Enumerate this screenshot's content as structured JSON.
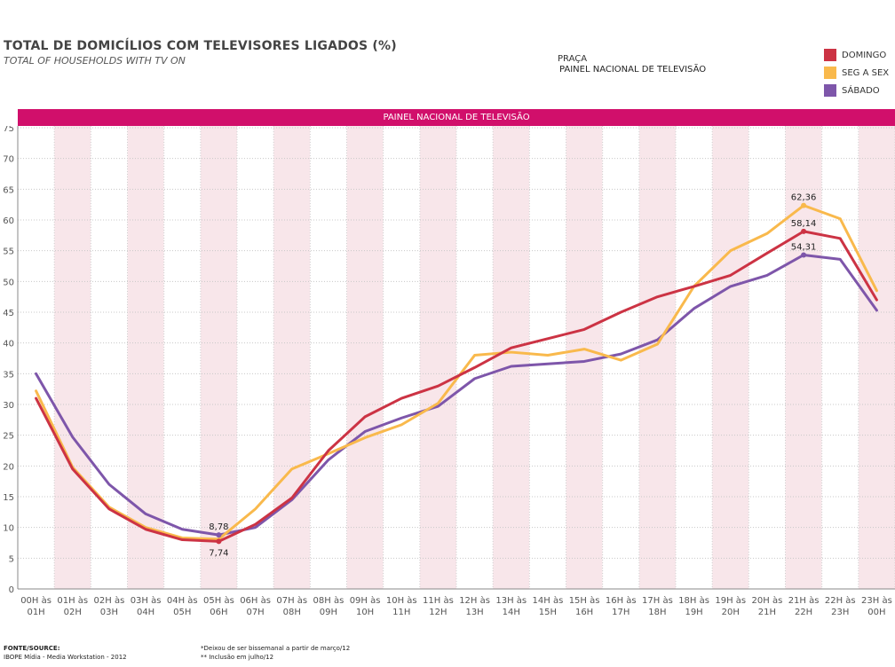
{
  "header": {
    "title": "TOTAL DE DOMICÍLIOS COM TELEVISORES LIGADOS (%)",
    "subtitle": "TOTAL OF HOUSEHOLDS WITH TV ON",
    "praca_label": "PRAÇA",
    "praca_value": "PAINEL NACIONAL DE TELEVISÃO"
  },
  "banner": "PAINEL NACIONAL DE TELEVISÃO",
  "legend": [
    {
      "name": "DOMINGO",
      "color": "#cc3344"
    },
    {
      "name": "SEG A SEX",
      "color": "#f9b94c"
    },
    {
      "name": "SÁBADO",
      "color": "#7e56aa"
    }
  ],
  "footer": {
    "source_line1": "FONTE/SOURCE:",
    "source_line2": "IBOPE Mídia - Media Workstation - 2012",
    "note1": "*Deixou de ser bissemanal a partir de março/12",
    "note2": "** Inclusão em julho/12"
  },
  "chart_data": {
    "type": "line",
    "title": "TOTAL DE DOMICÍLIOS COM TELEVISORES LIGADOS (%)",
    "categories": [
      [
        "00H às",
        "01H"
      ],
      [
        "01H às",
        "02H"
      ],
      [
        "02H às",
        "03H"
      ],
      [
        "03H às",
        "04H"
      ],
      [
        "04H às",
        "05H"
      ],
      [
        "05H às",
        "06H"
      ],
      [
        "06H às",
        "07H"
      ],
      [
        "07H às",
        "08H"
      ],
      [
        "08H às",
        "09H"
      ],
      [
        "09H às",
        "10H"
      ],
      [
        "10H às",
        "11H"
      ],
      [
        "11H às",
        "12H"
      ],
      [
        "12H às",
        "13H"
      ],
      [
        "13H às",
        "14H"
      ],
      [
        "14H às",
        "15H"
      ],
      [
        "15H às",
        "16H"
      ],
      [
        "16H às",
        "17H"
      ],
      [
        "17H às",
        "18H"
      ],
      [
        "18H às",
        "19H"
      ],
      [
        "19H às",
        "20H"
      ],
      [
        "20H às",
        "21H"
      ],
      [
        "21H às",
        "22H"
      ],
      [
        "22H às",
        "23H"
      ],
      [
        "23H às",
        "00H"
      ]
    ],
    "yticks": [
      0,
      5,
      10,
      15,
      20,
      25,
      30,
      35,
      40,
      45,
      50,
      55,
      60,
      65,
      70,
      75
    ],
    "ylim": [
      0,
      75
    ],
    "grid": true,
    "series": [
      {
        "name": "DOMINGO",
        "color": "#cc3344",
        "values": [
          31.0,
          19.5,
          13.0,
          9.7,
          8.0,
          7.74,
          10.5,
          14.8,
          22.5,
          28.0,
          31.0,
          33.0,
          36.0,
          39.2,
          40.7,
          42.2,
          45.0,
          47.5,
          49.2,
          51.0,
          54.6,
          58.14,
          57.0,
          47.0
        ]
      },
      {
        "name": "SEG A SEX",
        "color": "#f9b94c",
        "values": [
          32.2,
          19.8,
          13.3,
          10.0,
          8.3,
          8.1,
          13.0,
          19.5,
          22.0,
          24.6,
          26.7,
          30.2,
          38.0,
          38.5,
          38.0,
          39.0,
          37.2,
          39.8,
          49.2,
          55.0,
          57.8,
          62.36,
          60.2,
          48.5
        ]
      },
      {
        "name": "SÁBADO",
        "color": "#7e56aa",
        "values": [
          35.0,
          24.7,
          17.0,
          12.2,
          9.7,
          8.78,
          10.0,
          14.5,
          21.0,
          25.6,
          27.8,
          29.7,
          34.2,
          36.2,
          36.6,
          37.0,
          38.2,
          40.5,
          45.6,
          49.2,
          51.0,
          54.31,
          53.6,
          45.3
        ]
      }
    ],
    "data_labels": [
      {
        "series": "SÁBADO",
        "index": 5,
        "text": "8,78",
        "pos": "above"
      },
      {
        "series": "DOMINGO",
        "index": 5,
        "text": "7,74",
        "pos": "below"
      },
      {
        "series": "SEG A SEX",
        "index": 21,
        "text": "62,36",
        "pos": "above"
      },
      {
        "series": "DOMINGO",
        "index": 21,
        "text": "58,14",
        "pos": "above"
      },
      {
        "series": "SÁBADO",
        "index": 21,
        "text": "54,31",
        "pos": "above"
      }
    ]
  }
}
